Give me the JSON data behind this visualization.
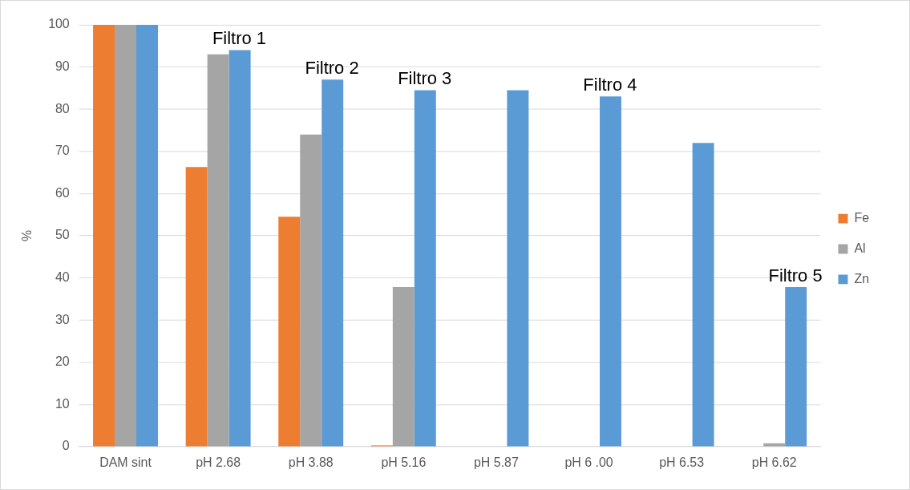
{
  "chart_data": {
    "type": "bar",
    "ylabel": "%",
    "categories": [
      "DAM sint",
      "pH 2.68",
      "pH 3.88",
      "pH 5.16",
      "pH 5.87",
      "pH 6 .00",
      "pH 6.53",
      "pH 6.62"
    ],
    "series": [
      {
        "name": "Fe",
        "color": "#ed7d31",
        "values": [
          100,
          66.3,
          54.5,
          0.3,
          0,
          0,
          0,
          0
        ]
      },
      {
        "name": "Al",
        "color": "#a5a5a5",
        "values": [
          100,
          93,
          74,
          37.8,
          0,
          0,
          0,
          0.8
        ]
      },
      {
        "name": "Zn",
        "color": "#5b9bd5",
        "values": [
          100,
          94,
          87,
          84.5,
          84.5,
          83,
          72,
          37.8
        ]
      }
    ],
    "ylim": [
      0,
      100
    ],
    "yticks": [
      0,
      10,
      20,
      30,
      40,
      50,
      60,
      70,
      80,
      90,
      100
    ],
    "grid": "y",
    "legend": "right",
    "annotations": [
      "Filtro 1",
      "Filtro 2",
      "Filtro 3",
      "Filtro 4",
      "Filtro 5"
    ]
  }
}
